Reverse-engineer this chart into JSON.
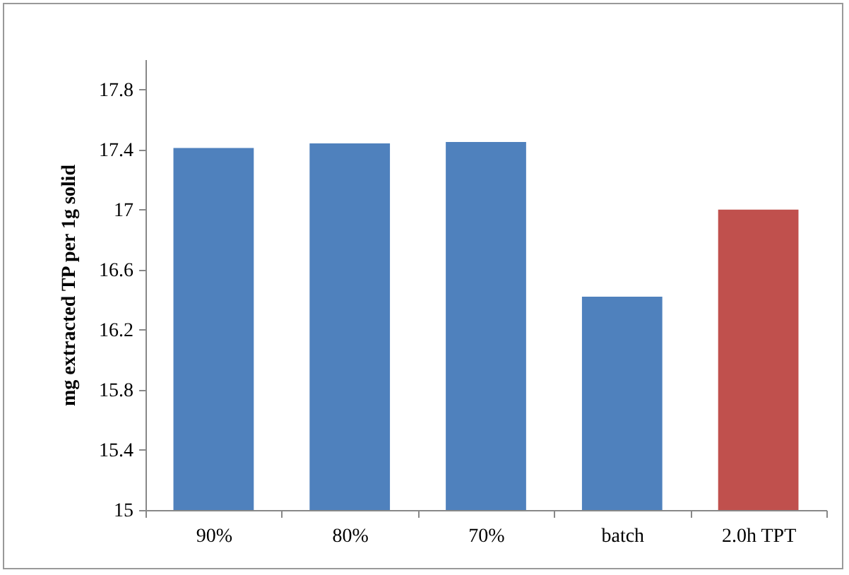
{
  "chart_data": {
    "type": "bar",
    "ylabel": "mg extracted TP per 1g solid",
    "categories": [
      "90%",
      "80%",
      "70%",
      "batch",
      "2.0h TPT"
    ],
    "values": [
      17.41,
      17.44,
      17.45,
      16.42,
      17.0
    ],
    "colors": [
      "#4f81bd",
      "#4f81bd",
      "#4f81bd",
      "#4f81bd",
      "#c0504d"
    ],
    "ylim": [
      15,
      18
    ],
    "yticks": [
      15,
      15.4,
      15.8,
      16.2,
      16.6,
      17,
      17.4,
      17.8
    ],
    "grid": false
  }
}
